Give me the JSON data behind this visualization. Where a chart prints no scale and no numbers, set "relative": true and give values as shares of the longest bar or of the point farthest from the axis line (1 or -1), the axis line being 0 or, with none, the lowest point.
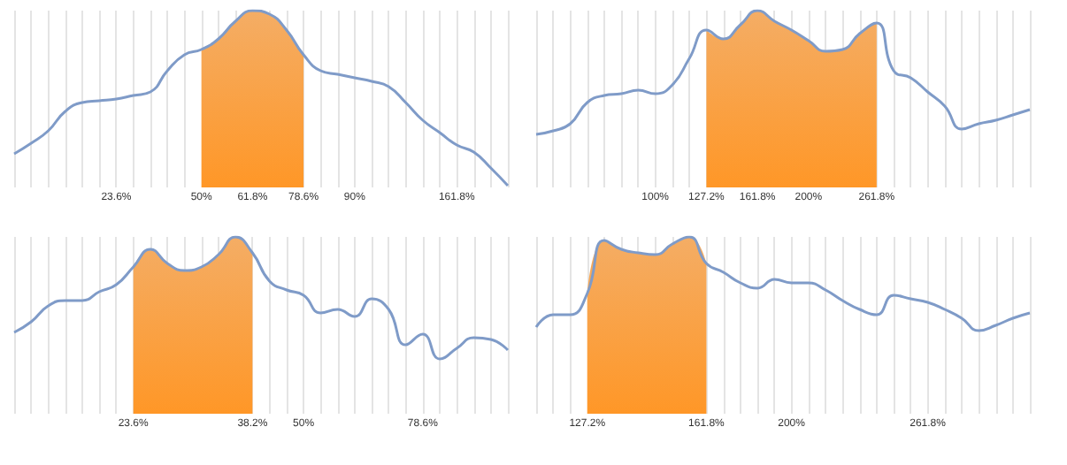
{
  "chart_data": [
    {
      "type": "line",
      "relative": true,
      "color": "#7f9bc8",
      "grid": "x",
      "marker": "none",
      "categories": [
        null,
        null,
        null,
        null,
        null,
        null,
        "23.6%",
        null,
        null,
        null,
        null,
        "50%",
        null,
        null,
        "61.8%",
        null,
        null,
        "78.6%",
        null,
        null,
        "90%",
        null,
        null,
        null,
        null,
        null,
        "161.8%",
        null,
        null,
        null
      ],
      "values": [
        0.19,
        0.25,
        0.32,
        0.43,
        0.48,
        0.49,
        0.5,
        0.52,
        0.54,
        0.66,
        0.75,
        0.78,
        0.84,
        0.94,
        1.0,
        0.98,
        0.89,
        0.75,
        0.66,
        0.64,
        0.62,
        0.6,
        0.57,
        0.48,
        0.38,
        0.31,
        0.24,
        0.2,
        0.11,
        0.01
      ],
      "bands": [
        {
          "axis": "x",
          "from": "50%",
          "to": "78.6%",
          "color": "#f08a24"
        }
      ]
    },
    {
      "type": "line",
      "relative": true,
      "color": "#7f9bc8",
      "grid": "x",
      "marker": "none",
      "categories": [
        null,
        null,
        null,
        null,
        null,
        null,
        null,
        "100%",
        null,
        null,
        "127.2%",
        null,
        null,
        "161.8%",
        null,
        null,
        "200%",
        null,
        null,
        null,
        "261.8%",
        null,
        null,
        null,
        null,
        null,
        null,
        null,
        null,
        null
      ],
      "values": [
        0.3,
        0.32,
        0.36,
        0.48,
        0.52,
        0.53,
        0.55,
        0.53,
        0.58,
        0.73,
        0.89,
        0.84,
        0.92,
        1.0,
        0.94,
        0.89,
        0.83,
        0.77,
        0.78,
        0.87,
        0.93,
        0.66,
        0.62,
        0.54,
        0.46,
        0.33,
        0.36,
        0.38,
        0.41,
        0.44
      ],
      "bands": [
        {
          "axis": "x",
          "from": "127.2%",
          "to": "261.8%",
          "color": "#f08a24"
        }
      ]
    },
    {
      "type": "line",
      "relative": true,
      "color": "#7f9bc8",
      "grid": "x",
      "marker": "none",
      "categories": [
        null,
        null,
        null,
        null,
        null,
        null,
        null,
        "23.6%",
        null,
        null,
        null,
        null,
        null,
        null,
        "38.2%",
        null,
        null,
        "50%",
        null,
        null,
        null,
        null,
        null,
        null,
        "78.6%",
        null,
        null,
        null,
        null,
        null
      ],
      "values": [
        0.46,
        0.52,
        0.61,
        0.64,
        0.64,
        0.69,
        0.73,
        0.83,
        0.93,
        0.85,
        0.81,
        0.83,
        0.9,
        1.0,
        0.91,
        0.75,
        0.7,
        0.67,
        0.57,
        0.59,
        0.55,
        0.65,
        0.59,
        0.39,
        0.45,
        0.31,
        0.37,
        0.43,
        0.42,
        0.36
      ],
      "bands": [
        {
          "axis": "x",
          "from": "23.6%",
          "to": "38.2%",
          "color": "#f08a24"
        }
      ]
    },
    {
      "type": "line",
      "relative": true,
      "color": "#7f9bc8",
      "grid": "x",
      "marker": "none",
      "categories": [
        null,
        null,
        null,
        "127.2%",
        null,
        null,
        null,
        null,
        null,
        null,
        "161.8%",
        null,
        null,
        null,
        null,
        "200%",
        null,
        null,
        null,
        null,
        null,
        null,
        null,
        "261.8%",
        null,
        null,
        null,
        null,
        null,
        null
      ],
      "values": [
        0.49,
        0.56,
        0.56,
        0.68,
        0.98,
        0.93,
        0.91,
        0.9,
        0.96,
        1.0,
        0.85,
        0.8,
        0.74,
        0.71,
        0.76,
        0.74,
        0.74,
        0.7,
        0.64,
        0.59,
        0.56,
        0.67,
        0.65,
        0.63,
        0.59,
        0.54,
        0.47,
        0.5,
        0.54,
        0.57
      ],
      "bands": [
        {
          "axis": "x",
          "from": "127.2%",
          "to": "161.8%",
          "color": "#f08a24"
        }
      ]
    }
  ]
}
